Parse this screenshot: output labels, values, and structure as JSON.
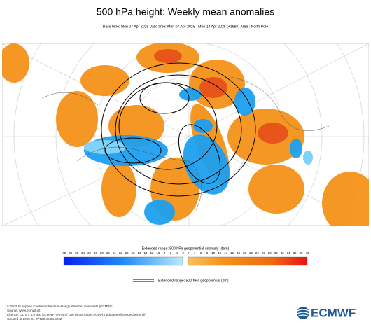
{
  "header": {
    "title": "500 hPa height: Weekly mean anomalies",
    "subtitle": "Base time: Mon 07 Apr 2025 Valid time: Mon 07 Apr 2025 - Mon 14 Apr 2025 (+168h) Area : North Pole"
  },
  "colorbar": {
    "label": "Extended range: 500 hPa geopotential anomaly (dam)",
    "ticks": [
      -40,
      -38,
      -36,
      -34,
      -32,
      -30,
      -28,
      -26,
      -24,
      -22,
      -20,
      -18,
      -16,
      -14,
      -12,
      -10,
      -8,
      -6,
      -4,
      -2,
      2,
      4,
      6,
      8,
      10,
      12,
      14,
      16,
      18,
      20,
      22,
      24,
      26,
      28,
      30,
      32,
      34,
      36,
      38,
      40
    ]
  },
  "legend": {
    "label": "Extended range: 500 hPa geopotential (dm)"
  },
  "footer": {
    "lines": [
      "© 2025 European Centre for Medium-Range Weather Forecasts (ECMWF)",
      "Source: www.ecmwf.int",
      "Licence: CC BY 4.0 and ECMWF Terms of Use (https://apps.ecmwf.int/datasets/licences/general/)",
      "Created at 2025-04-07T20:45:04.320Z"
    ]
  },
  "logo": {
    "text": "ECMWF"
  }
}
